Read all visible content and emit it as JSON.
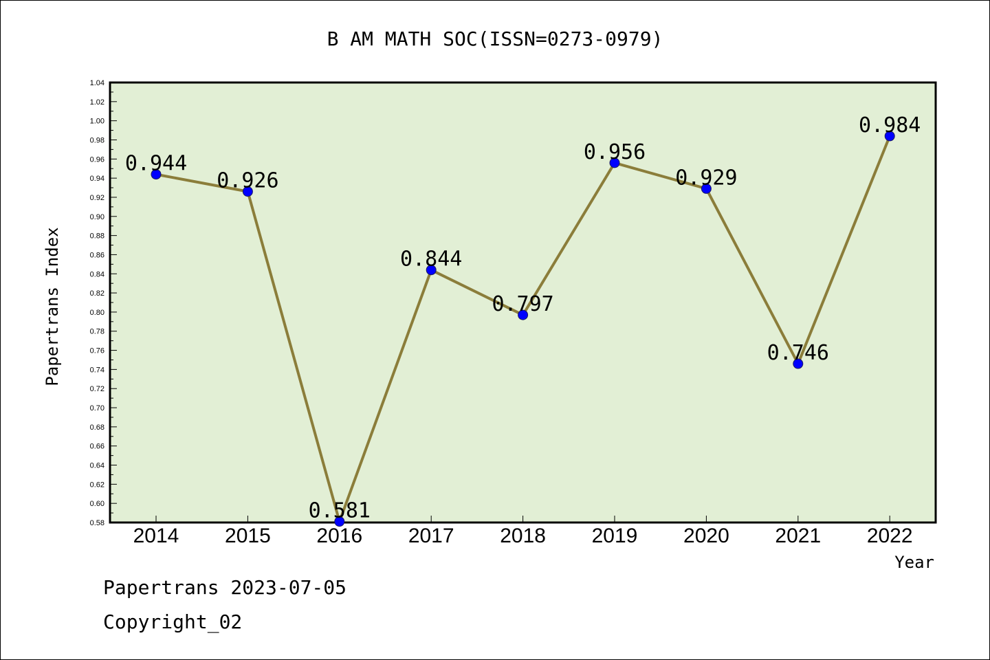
{
  "chart_data": {
    "type": "line",
    "title": "B AM MATH SOC(ISSN=0273-0979)",
    "xlabel": "Year",
    "ylabel": "Papertrans Index",
    "categories": [
      "2014",
      "2015",
      "2016",
      "2017",
      "2018",
      "2019",
      "2020",
      "2021",
      "2022"
    ],
    "series": [
      {
        "values": [
          0.944,
          0.926,
          0.581,
          0.844,
          0.797,
          0.956,
          0.929,
          0.746,
          0.984
        ]
      }
    ],
    "data_labels": [
      "0.944",
      "0.926",
      "0.581",
      "0.844",
      "0.797",
      "0.956",
      "0.929",
      "0.746",
      "0.984"
    ],
    "ylim": [
      0.58,
      1.04
    ],
    "yticks": [
      "0.58",
      "0.60",
      "0.62",
      "0.64",
      "0.66",
      "0.68",
      "0.70",
      "0.72",
      "0.74",
      "0.76",
      "0.78",
      "0.80",
      "0.82",
      "0.84",
      "0.86",
      "0.88",
      "0.90",
      "0.92",
      "0.94",
      "0.96",
      "0.98",
      "1.00",
      "1.02",
      "1.04"
    ],
    "grid": false,
    "legend": "none",
    "colors": {
      "plot_background": "#e2efd5",
      "line": "#8b7d3a",
      "marker": "#0000ff"
    }
  },
  "footer": {
    "line1": "Papertrans 2023-07-05",
    "line2": "Copyright_02"
  }
}
